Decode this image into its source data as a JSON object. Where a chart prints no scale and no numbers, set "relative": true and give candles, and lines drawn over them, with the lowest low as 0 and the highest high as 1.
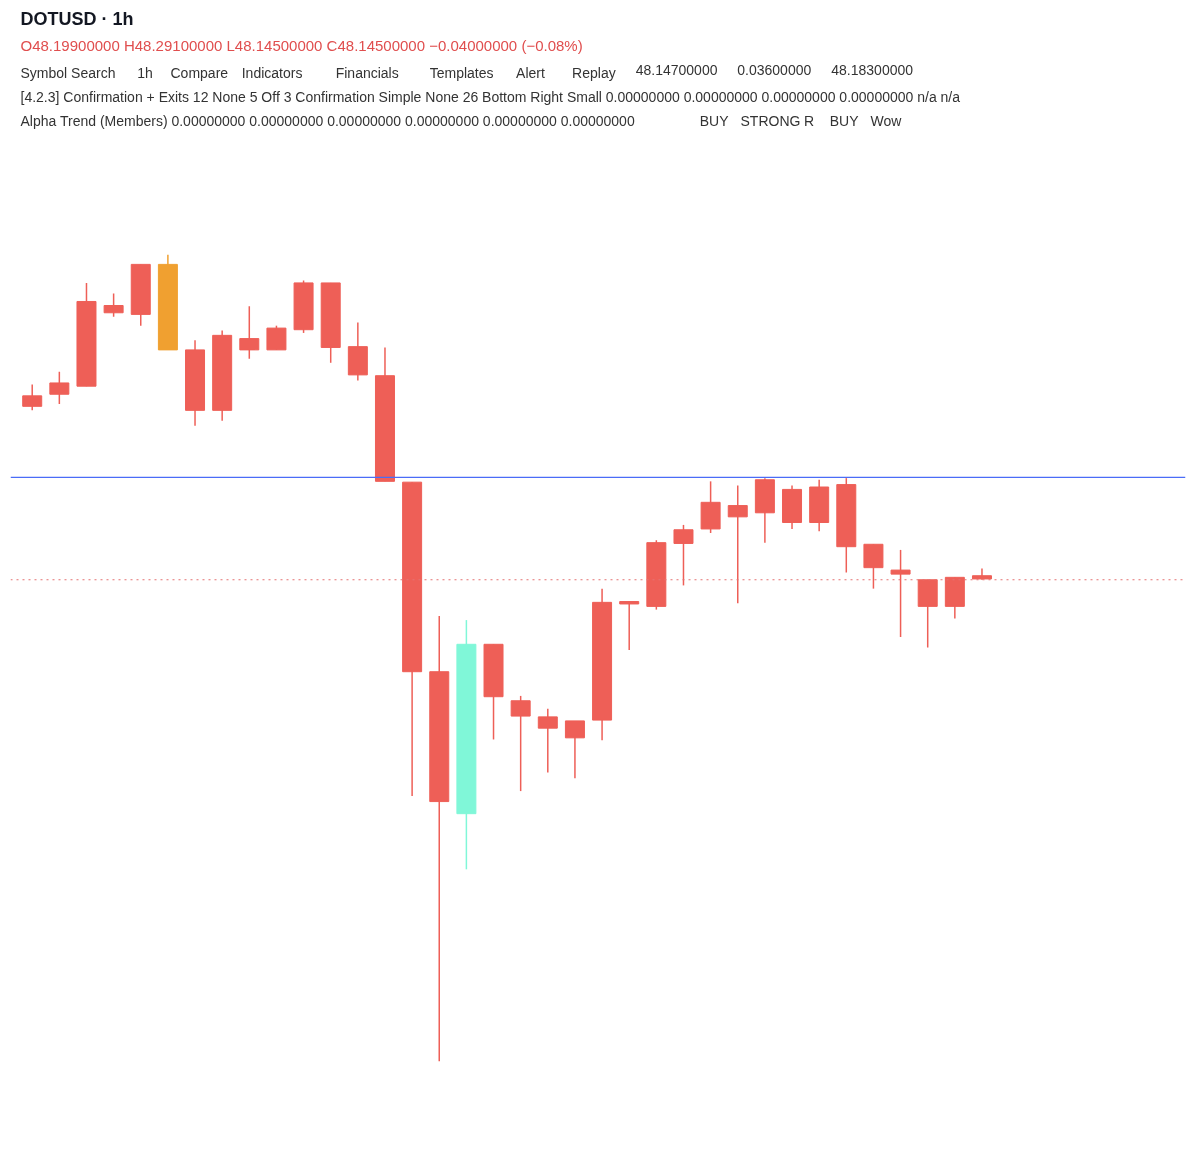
{
  "chart_data": {
    "type": "candlestick",
    "relative": true,
    "title": "DOTUSD · 1h",
    "subtitle": "O48.19900000 H48.29100000 L48.14500000 C48.14500000 −0.04000000 (−0.08%)",
    "annotations": [
      "Symbol Search",
      "1h",
      "Compare",
      "Indicators",
      "Financials",
      "Templates",
      "Alert",
      "Replay",
      "48.14700000",
      "0.03600000",
      "48.18300000",
      "[4.2.3] Confirmation + Exits 12 None 5 Off 3 Confirmation Simple None 26 Bottom Right Small 0.00000000 0.00000000 0.00000000 0.00000000 n/a n/a",
      "Alpha Trend (Members) 0.00000000 0.00000000 0.00000000 0.00000000 0.00000000 0.00000000",
      "BUY",
      "STRONG",
      "R",
      "BUY",
      "Wow"
    ],
    "categories": [
      null,
      null,
      null,
      null,
      null,
      null,
      null,
      null,
      null,
      null,
      null,
      null,
      null,
      null,
      null,
      null,
      null,
      null,
      null,
      null,
      null,
      null,
      null,
      null,
      null,
      null,
      null,
      null,
      null,
      null,
      null,
      null,
      null,
      null,
      null,
      null
    ],
    "ohlc": [
      [
        0.825,
        0.839,
        0.807,
        0.812
      ],
      [
        0.841,
        0.855,
        0.815,
        0.827
      ],
      [
        0.942,
        0.965,
        0.837,
        0.837
      ],
      [
        0.937,
        0.952,
        0.923,
        0.928
      ],
      [
        0.988,
        0.988,
        0.912,
        0.926
      ],
      [
        0.988,
        1,
        0.882,
        0.882
      ],
      [
        0.882,
        0.894,
        0.788,
        0.807
      ],
      [
        0.9,
        0.906,
        0.794,
        0.807
      ],
      [
        0.896,
        0.936,
        0.871,
        0.882
      ],
      [
        0.909,
        0.912,
        0.882,
        0.882
      ],
      [
        0.965,
        0.968,
        0.903,
        0.907
      ],
      [
        0.965,
        0.965,
        0.866,
        0.885
      ],
      [
        0.886,
        0.916,
        0.844,
        0.851
      ],
      [
        0.85,
        0.885,
        0.719,
        0.719
      ],
      [
        0.718,
        0.718,
        0.329,
        0.483
      ],
      [
        0.483,
        0.552,
        0,
        0.322
      ],
      [
        0.307,
        0.547,
        0.238,
        0.517
      ],
      [
        0.517,
        0.517,
        0.399,
        0.452
      ],
      [
        0.447,
        0.453,
        0.335,
        0.428
      ],
      [
        0.427,
        0.437,
        0.358,
        0.413
      ],
      [
        0.422,
        0.422,
        0.351,
        0.401
      ],
      [
        0.569,
        0.586,
        0.398,
        0.423
      ],
      [
        0.57,
        0.57,
        0.51,
        0.567
      ],
      [
        0.643,
        0.646,
        0.56,
        0.564
      ],
      [
        0.659,
        0.665,
        0.59,
        0.642
      ],
      [
        0.693,
        0.719,
        0.655,
        0.66
      ],
      [
        0.689,
        0.714,
        0.568,
        0.675
      ],
      [
        0.721,
        0.723,
        0.643,
        0.68
      ],
      [
        0.709,
        0.714,
        0.66,
        0.668
      ],
      [
        0.712,
        0.721,
        0.657,
        0.668
      ],
      [
        0.715,
        0.723,
        0.606,
        0.638
      ],
      [
        0.641,
        0.641,
        0.586,
        0.612
      ],
      [
        0.609,
        0.634,
        0.526,
        0.604
      ],
      [
        0.597,
        0.597,
        0.513,
        0.564
      ],
      [
        0.6,
        0.6,
        0.549,
        0.564
      ],
      [
        0.602,
        0.611,
        0.597,
        0.598
      ]
    ],
    "colors": [
      "#ee5f57",
      "#ee5f57",
      "#ee5f57",
      "#ee5f57",
      "#ee5f57",
      "#f0a030",
      "#ee5f57",
      "#ee5f57",
      "#ee5f57",
      "#ee5f57",
      "#ee5f57",
      "#ee5f57",
      "#ee5f57",
      "#ee5f57",
      "#ee5f57",
      "#ee5f57",
      "#80f7d8",
      "#ee5f57",
      "#ee5f57",
      "#ee5f57",
      "#ee5f57",
      "#ee5f57",
      "#ee5f57",
      "#ee5f57",
      "#ee5f57",
      "#ee5f57",
      "#ee5f57",
      "#ee5f57",
      "#ee5f57",
      "#ee5f57",
      "#ee5f57",
      "#ee5f57",
      "#ee5f57",
      "#ee5f57",
      "#ee5f57",
      "#ee5f57"
    ],
    "ref_lines": [
      {
        "axis": "y",
        "value": 0.724,
        "color": "#4a6cf7",
        "line_style": "solid"
      },
      {
        "axis": "y",
        "value": 0.597,
        "color": "#e57373",
        "line_style": "dotted"
      }
    ]
  }
}
